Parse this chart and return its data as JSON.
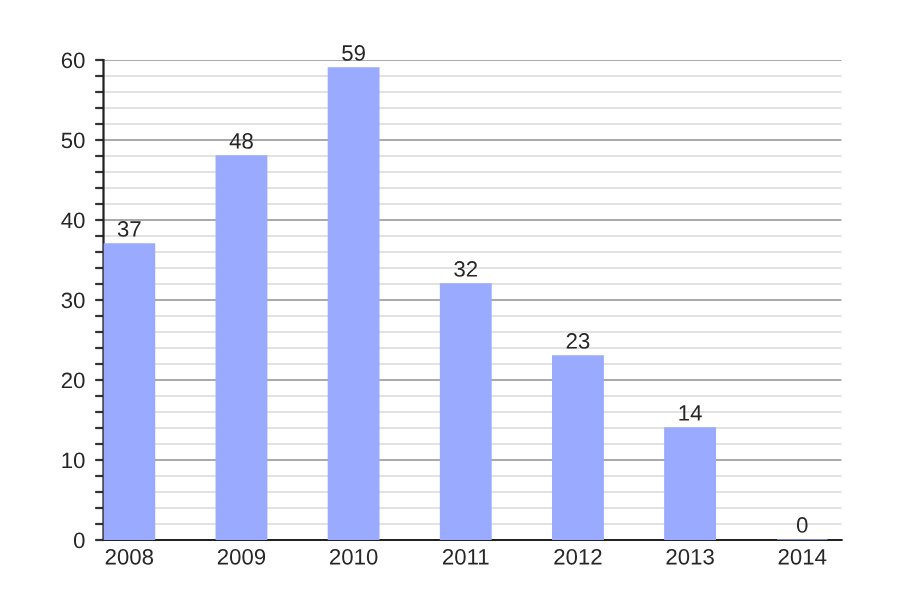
{
  "chart_data": {
    "type": "bar",
    "categories": [
      "2008",
      "2009",
      "2010",
      "2011",
      "2012",
      "2013",
      "2014"
    ],
    "values": [
      37,
      48,
      59,
      32,
      23,
      14,
      0
    ],
    "color": "#99aaff",
    "ylim": [
      0,
      60
    ],
    "yticks": [
      0,
      {
        "value": 2,
        "label": null
      },
      {
        "value": 4,
        "label": null
      },
      {
        "value": 6,
        "label": null
      },
      {
        "value": 8,
        "label": null
      },
      10,
      {
        "value": 12,
        "label": null
      },
      {
        "value": 14,
        "label": null
      },
      {
        "value": 16,
        "label": null
      },
      {
        "value": 18,
        "label": null
      },
      20,
      {
        "value": 22,
        "label": null
      },
      {
        "value": 24,
        "label": null
      },
      {
        "value": 26,
        "label": null
      },
      {
        "value": 28,
        "label": null
      },
      30,
      {
        "value": 32,
        "label": null
      },
      {
        "value": 34,
        "label": null
      },
      {
        "value": 36,
        "label": null
      },
      {
        "value": 38,
        "label": null
      },
      40,
      {
        "value": 42,
        "label": null
      },
      {
        "value": 44,
        "label": null
      },
      {
        "value": 46,
        "label": null
      },
      {
        "value": 48,
        "label": null
      },
      50,
      {
        "value": 52,
        "label": null
      },
      {
        "value": 54,
        "label": null
      },
      {
        "value": 56,
        "label": null
      },
      {
        "value": 58,
        "label": null
      },
      60
    ],
    "grid": "y",
    "data_labels": true
  }
}
